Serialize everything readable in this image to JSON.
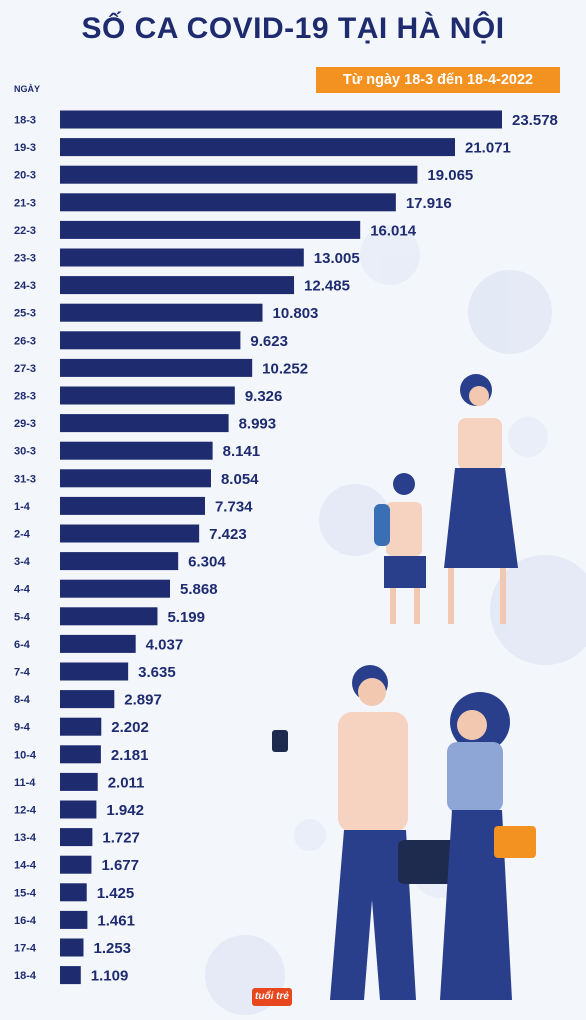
{
  "header": {
    "title": "SỐ CA COVID-19 TẠI HÀ NỘI",
    "subtitle": "Từ ngày 18-3 đến 18-4-2022"
  },
  "colors": {
    "bar": "#1e2b6f",
    "accent": "#f39221",
    "background": "#f3f6fb"
  },
  "logo": {
    "text": "tuổi trẻ"
  },
  "chart_data": {
    "type": "bar",
    "orientation": "horizontal",
    "title": "SỐ CA COVID-19 TẠI HÀ NỘI",
    "subtitle": "Từ ngày 18-3 đến 18-4-2022",
    "ylabel": "NGÀY",
    "xlabel": "",
    "xlim": [
      0,
      23578
    ],
    "grid": false,
    "categories": [
      "18-3",
      "19-3",
      "20-3",
      "21-3",
      "22-3",
      "23-3",
      "24-3",
      "25-3",
      "26-3",
      "27-3",
      "28-3",
      "29-3",
      "30-3",
      "31-3",
      "1-4",
      "2-4",
      "3-4",
      "4-4",
      "5-4",
      "6-4",
      "7-4",
      "8-4",
      "9-4",
      "10-4",
      "11-4",
      "12-4",
      "13-4",
      "14-4",
      "15-4",
      "16-4",
      "17-4",
      "18-4"
    ],
    "values": [
      23578,
      21071,
      19065,
      17916,
      16014,
      13005,
      12485,
      10803,
      9623,
      10252,
      9326,
      8993,
      8141,
      8054,
      7734,
      7423,
      6304,
      5868,
      5199,
      4037,
      3635,
      2897,
      2202,
      2181,
      2011,
      1942,
      1727,
      1677,
      1425,
      1461,
      1253,
      1109
    ],
    "value_labels": [
      "23.578",
      "21.071",
      "19.065",
      "17.916",
      "16.014",
      "13.005",
      "12.485",
      "10.803",
      "9.623",
      "10.252",
      "9.326",
      "8.993",
      "8.141",
      "8.054",
      "7.734",
      "7.423",
      "6.304",
      "5.868",
      "5.199",
      "4.037",
      "3.635",
      "2.897",
      "2.202",
      "2.181",
      "2.011",
      "1.942",
      "1.727",
      "1.677",
      "1.425",
      "1.461",
      "1.253",
      "1.109"
    ]
  }
}
